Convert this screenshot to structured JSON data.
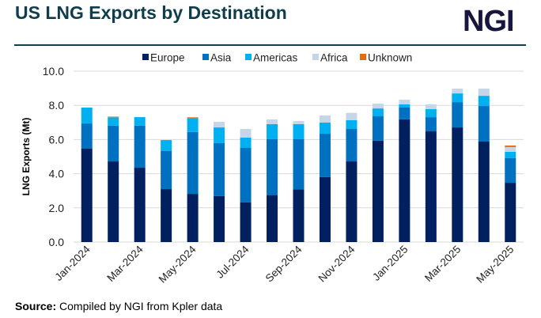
{
  "header": {
    "title": "US LNG Exports by Destination",
    "logo_text": "NGI"
  },
  "footer": {
    "source_label": "Source:",
    "source_text": "Compiled by NGI from Kpler data"
  },
  "chart_data": {
    "type": "bar",
    "stacked": true,
    "title": "US LNG Exports by Destination",
    "xlabel": "",
    "ylabel": "LNG Exports (Mt)",
    "ylim": [
      0,
      10
    ],
    "yticks": [
      "0.0",
      "2.0",
      "4.0",
      "6.0",
      "8.0",
      "10.0"
    ],
    "grid": true,
    "legend_position": "top",
    "categories": [
      "Jan-2024",
      "Feb-2024",
      "Mar-2024",
      "Apr-2024",
      "May-2024",
      "Jun-2024",
      "Jul-2024",
      "Aug-2024",
      "Sep-2024",
      "Oct-2024",
      "Nov-2024",
      "Dec-2024",
      "Jan-2025",
      "Feb-2025",
      "Mar-2025",
      "Apr-2025",
      "May-2025"
    ],
    "xtick_labels": [
      "Jan-2024",
      "Mar-2024",
      "May-2024",
      "Jul-2024",
      "Sep-2024",
      "Nov-2024",
      "Jan-2025",
      "Mar-2025",
      "May-2025"
    ],
    "series": [
      {
        "name": "Europe",
        "color": "#002060",
        "values": [
          5.48,
          4.72,
          4.35,
          3.1,
          2.82,
          2.69,
          2.33,
          2.75,
          3.09,
          3.8,
          4.72,
          5.93,
          7.18,
          6.48,
          6.71,
          5.88,
          3.47
        ]
      },
      {
        "name": "Asia",
        "color": "#0070c0",
        "values": [
          1.46,
          2.09,
          2.46,
          2.24,
          3.62,
          3.1,
          3.18,
          3.27,
          2.93,
          2.54,
          1.9,
          1.43,
          0.69,
          0.83,
          1.48,
          2.08,
          1.44
        ]
      },
      {
        "name": "Americas",
        "color": "#00b0f0",
        "values": [
          0.93,
          0.49,
          0.5,
          0.63,
          0.81,
          0.92,
          0.6,
          0.88,
          0.88,
          0.65,
          0.51,
          0.46,
          0.19,
          0.47,
          0.51,
          0.6,
          0.37
        ]
      },
      {
        "name": "Africa",
        "color": "#c5d5ea",
        "values": [
          0,
          0,
          0,
          0,
          0,
          0.33,
          0.51,
          0.28,
          0.18,
          0.42,
          0.43,
          0.28,
          0.27,
          0.28,
          0.28,
          0.42,
          0.28
        ]
      },
      {
        "name": "Unknown",
        "color": "#e46c0a",
        "values": [
          0,
          0.04,
          0,
          0,
          0.05,
          0,
          0,
          0,
          0,
          0,
          0,
          0,
          0,
          0,
          0,
          0,
          0.09
        ]
      }
    ]
  }
}
